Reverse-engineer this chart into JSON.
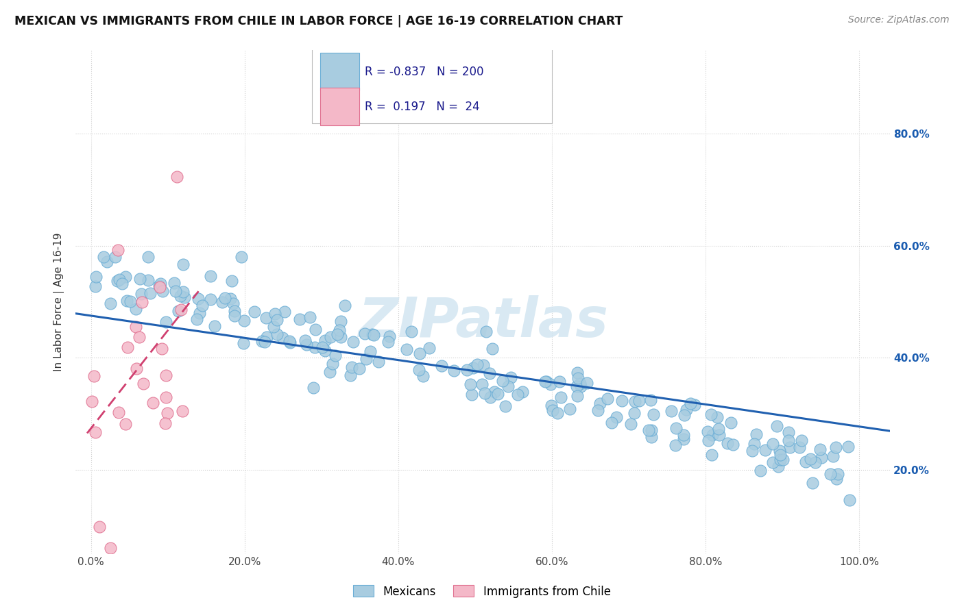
{
  "title": "MEXICAN VS IMMIGRANTS FROM CHILE IN LABOR FORCE | AGE 16-19 CORRELATION CHART",
  "source": "Source: ZipAtlas.com",
  "ylabel_label": "In Labor Force | Age 16-19",
  "blue_R": -0.837,
  "blue_N": 200,
  "pink_R": 0.197,
  "pink_N": 24,
  "blue_color": "#a8cce0",
  "blue_edge_color": "#6baed6",
  "pink_color": "#f4b8c8",
  "pink_edge_color": "#e07090",
  "blue_line_color": "#2060b0",
  "pink_line_color": "#d04070",
  "watermark_color": "#d0e4f0",
  "watermark_text": "ZIPatlas",
  "legend_entries": [
    "Mexicans",
    "Immigrants from Chile"
  ],
  "legend_text_color": "#1a1a8c",
  "right_tick_color": "#1a5cb0",
  "blue_scatter_seed": 42,
  "pink_scatter_seed": 99,
  "xlim": [
    -0.02,
    1.04
  ],
  "ylim": [
    0.05,
    0.95
  ]
}
